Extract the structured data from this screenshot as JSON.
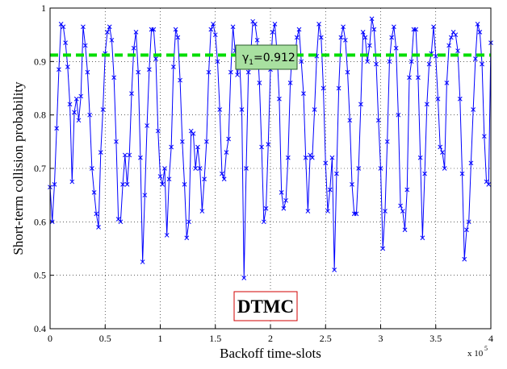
{
  "chart_data": {
    "type": "line",
    "xlabel": "Backoff time-slots",
    "ylabel": "Short-term collision probability",
    "x_multiplier": {
      "base": "x 10",
      "exponent": "5"
    },
    "xlim": [
      0,
      4
    ],
    "xticks": [
      0,
      0.5,
      1,
      1.5,
      2,
      2.5,
      3,
      3.5,
      4
    ],
    "ylim": [
      0.4,
      1
    ],
    "yticks": [
      0.4,
      0.5,
      0.6,
      0.7,
      0.8,
      0.9,
      1
    ],
    "grid": true,
    "x": [
      0,
      0.02,
      0.04,
      0.06,
      0.08,
      0.1,
      0.12,
      0.14,
      0.16,
      0.18,
      0.2,
      0.22,
      0.24,
      0.26,
      0.28,
      0.3,
      0.32,
      0.34,
      0.36,
      0.38,
      0.4,
      0.42,
      0.44,
      0.46,
      0.48,
      0.5,
      0.52,
      0.54,
      0.56,
      0.58,
      0.6,
      0.62,
      0.64,
      0.66,
      0.68,
      0.7,
      0.72,
      0.74,
      0.76,
      0.78,
      0.8,
      0.82,
      0.84,
      0.86,
      0.88,
      0.9,
      0.92,
      0.94,
      0.96,
      0.98,
      1,
      1.02,
      1.04,
      1.06,
      1.08,
      1.1,
      1.12,
      1.14,
      1.16,
      1.18,
      1.2,
      1.22,
      1.24,
      1.26,
      1.28,
      1.3,
      1.32,
      1.34,
      1.36,
      1.38,
      1.4,
      1.42,
      1.44,
      1.46,
      1.48,
      1.5,
      1.52,
      1.54,
      1.56,
      1.58,
      1.6,
      1.62,
      1.64,
      1.66,
      1.68,
      1.7,
      1.72,
      1.74,
      1.76,
      1.78,
      1.8,
      1.82,
      1.84,
      1.86,
      1.88,
      1.9,
      1.92,
      1.94,
      1.96,
      1.98,
      2,
      2.02,
      2.04,
      2.06,
      2.08,
      2.1,
      2.12,
      2.14,
      2.16,
      2.18,
      2.2,
      2.22,
      2.24,
      2.26,
      2.28,
      2.3,
      2.32,
      2.34,
      2.36,
      2.38,
      2.4,
      2.42,
      2.44,
      2.46,
      2.48,
      2.5,
      2.52,
      2.54,
      2.56,
      2.58,
      2.6,
      2.62,
      2.64,
      2.66,
      2.68,
      2.7,
      2.72,
      2.74,
      2.76,
      2.78,
      2.8,
      2.82,
      2.84,
      2.86,
      2.88,
      2.9,
      2.92,
      2.94,
      2.96,
      2.98,
      3,
      3.02,
      3.04,
      3.06,
      3.08,
      3.1,
      3.12,
      3.14,
      3.16,
      3.18,
      3.2,
      3.22,
      3.24,
      3.26,
      3.28,
      3.3,
      3.32,
      3.34,
      3.36,
      3.38,
      3.4,
      3.42,
      3.44,
      3.46,
      3.48,
      3.5,
      3.52,
      3.54,
      3.56,
      3.58,
      3.6,
      3.62,
      3.64,
      3.66,
      3.68,
      3.7,
      3.72,
      3.74,
      3.76,
      3.78,
      3.8,
      3.82,
      3.84,
      3.86,
      3.88,
      3.9,
      3.92,
      3.94,
      3.96,
      3.98,
      4
    ],
    "series": [
      {
        "color": "#0000ff",
        "values": [
          0.665,
          0.6,
          0.67,
          0.775,
          0.885,
          0.97,
          0.965,
          0.935,
          0.89,
          0.82,
          0.675,
          0.805,
          0.83,
          0.79,
          0.835,
          0.965,
          0.93,
          0.88,
          0.8,
          0.7,
          0.655,
          0.615,
          0.59,
          0.73,
          0.81,
          0.915,
          0.955,
          0.965,
          0.94,
          0.87,
          0.75,
          0.605,
          0.6,
          0.67,
          0.725,
          0.67,
          0.725,
          0.84,
          0.925,
          0.955,
          0.88,
          0.72,
          0.525,
          0.65,
          0.78,
          0.885,
          0.96,
          0.96,
          0.905,
          0.77,
          0.685,
          0.67,
          0.7,
          0.575,
          0.68,
          0.74,
          0.89,
          0.96,
          0.945,
          0.865,
          0.75,
          0.67,
          0.57,
          0.6,
          0.77,
          0.765,
          0.7,
          0.74,
          0.7,
          0.62,
          0.68,
          0.75,
          0.88,
          0.96,
          0.97,
          0.95,
          0.9,
          0.81,
          0.69,
          0.68,
          0.73,
          0.755,
          0.88,
          0.965,
          0.92,
          0.875,
          0.9,
          0.81,
          0.495,
          0.7,
          0.88,
          0.91,
          0.975,
          0.97,
          0.94,
          0.86,
          0.74,
          0.6,
          0.625,
          0.745,
          0.885,
          0.955,
          0.97,
          0.915,
          0.83,
          0.655,
          0.625,
          0.64,
          0.72,
          0.86,
          0.925,
          0.9,
          0.945,
          0.96,
          0.9,
          0.84,
          0.72,
          0.62,
          0.725,
          0.72,
          0.81,
          0.91,
          0.97,
          0.945,
          0.85,
          0.71,
          0.62,
          0.66,
          0.72,
          0.51,
          0.69,
          0.85,
          0.945,
          0.965,
          0.94,
          0.88,
          0.79,
          0.67,
          0.615,
          0.615,
          0.7,
          0.82,
          0.955,
          0.945,
          0.9,
          0.93,
          0.98,
          0.96,
          0.895,
          0.79,
          0.7,
          0.55,
          0.62,
          0.75,
          0.9,
          0.945,
          0.965,
          0.925,
          0.8,
          0.63,
          0.62,
          0.585,
          0.66,
          0.87,
          0.9,
          0.96,
          0.96,
          0.87,
          0.72,
          0.57,
          0.69,
          0.82,
          0.895,
          0.915,
          0.965,
          0.91,
          0.83,
          0.74,
          0.73,
          0.7,
          0.86,
          0.93,
          0.945,
          0.955,
          0.95,
          0.92,
          0.83,
          0.69,
          0.53,
          0.585,
          0.6,
          0.71,
          0.81,
          0.905,
          0.97,
          0.955,
          0.895,
          0.76,
          0.675,
          0.67,
          0.935
        ]
      }
    ],
    "threshold": {
      "value": 0.912,
      "color": "#00dd00",
      "label_symbol": "γ",
      "label_subscript": "1",
      "label_text": "=0.912"
    },
    "model_label": "DTMC"
  }
}
